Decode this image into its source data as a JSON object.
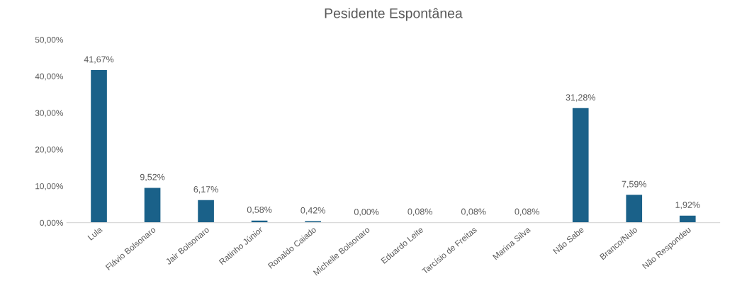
{
  "chart_data": {
    "type": "bar",
    "title": "Pesidente Espontânea",
    "categories": [
      "Lula",
      "Flávio Bolsonaro",
      "Jair Bolsonaro",
      "Ratinho Júnior",
      "Ronaldo Caiado",
      "Michelle Bolsonaro",
      "Eduardo Leite",
      "Tarcísio de Freitas",
      "Marina Silva",
      "Não Sabe",
      "Branco/Nulo",
      "Não Respondeu"
    ],
    "values": [
      41.67,
      9.52,
      6.17,
      0.58,
      0.42,
      0.0,
      0.08,
      0.08,
      0.08,
      31.28,
      7.59,
      1.92
    ],
    "value_labels": [
      "41,67%",
      "9,52%",
      "6,17%",
      "0,58%",
      "0,42%",
      "0,00%",
      "0,08%",
      "0,08%",
      "0,08%",
      "31,28%",
      "7,59%",
      "1,92%"
    ],
    "color": "#1a6189",
    "ylim": [
      0,
      50
    ],
    "yticks": [
      {
        "value": 0,
        "label": "0,00%"
      },
      {
        "value": 10,
        "label": "10,00%"
      },
      {
        "value": 20,
        "label": "20,00%"
      },
      {
        "value": 30,
        "label": "30,00%"
      },
      {
        "value": 40,
        "label": "40,00%"
      },
      {
        "value": 50,
        "label": "50,00%"
      }
    ],
    "grid": false
  }
}
